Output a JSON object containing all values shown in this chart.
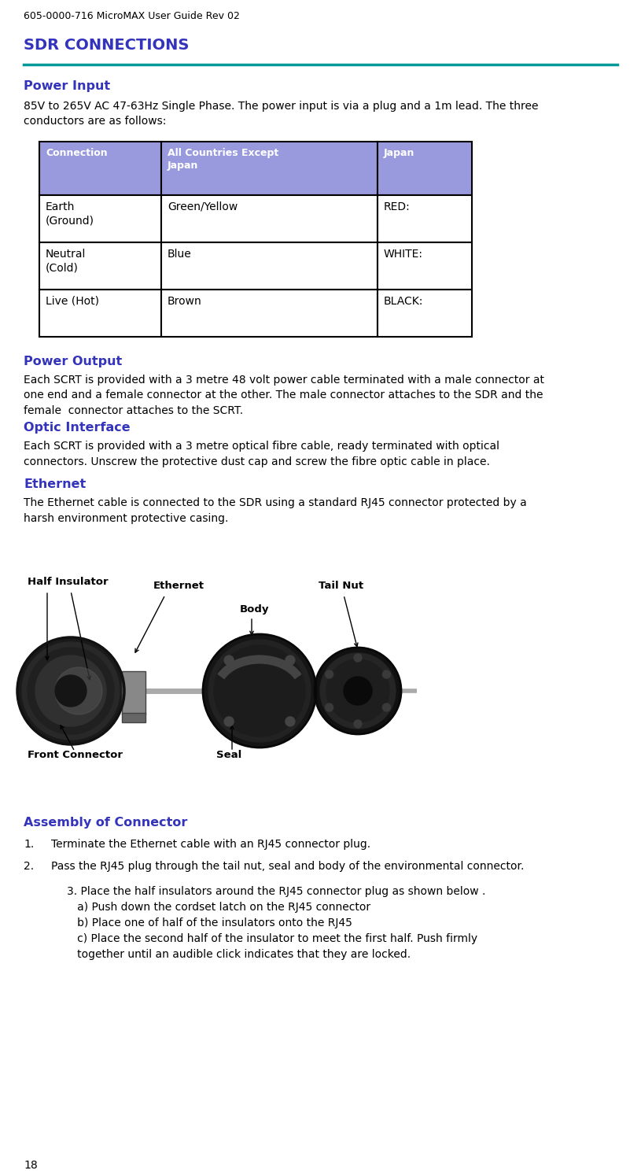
{
  "bg_color": "#ffffff",
  "header_text": "605-0000-716 MicroMAX User Guide Rev 02",
  "header_fontsize": 9,
  "page_number": "18",
  "main_title": "SDR CONNECTIONS",
  "main_title_color": "#3333bb",
  "main_title_fontsize": 14,
  "separator_color": "#009999",
  "section_color": "#3333bb",
  "section_fontsize": 11.5,
  "body_fontsize": 10,
  "power_input_heading": "Power Input",
  "power_input_body": "85V to 265V AC 47-63Hz Single Phase. The power input is via a plug and a 1m lead. The three\nconductors are as follows:",
  "table_header_bg": "#9999dd",
  "table_header_text_color": "#ffffff",
  "table_col1_header": "Connection",
  "table_col2_header": "All Countries Except\nJapan",
  "table_col3_header": "Japan",
  "table_rows": [
    [
      "Earth\n(Ground)",
      "Green/Yellow",
      "RED:"
    ],
    [
      "Neutral\n(Cold)",
      "Blue",
      "WHITE:"
    ],
    [
      "Live (Hot)",
      "Brown",
      "BLACK:"
    ]
  ],
  "power_output_heading": "Power Output",
  "power_output_body": "Each SCRT is provided with a 3 metre 48 volt power cable terminated with a male connector at\none end and a female connector at the other. The male connector attaches to the SDR and the\nfemale  connector attaches to the SCRT.",
  "optic_heading": "Optic Interface",
  "optic_body": "Each SCRT is provided with a 3 metre optical fibre cable, ready terminated with optical\nconnectors. Unscrew the protective dust cap and screw the fibre optic cable in place.",
  "ethernet_heading": "Ethernet",
  "ethernet_body": "The Ethernet cable is connected to the SDR using a standard RJ45 connector protected by a\nharsh environment protective casing.",
  "img_label_half_insulator": "Half Insulator",
  "img_label_ethernet": "Ethernet",
  "img_label_body": "Body",
  "img_label_tail_nut": "Tail Nut",
  "img_label_front_connector": "Front Connector",
  "img_label_seal": "Seal",
  "assembly_heading": "Assembly of Connector",
  "assembly_heading_color": "#3333bb",
  "assembly_item1": "Terminate the Ethernet cable with an RJ45 connector plug.",
  "assembly_item2": "Pass the RJ45 plug through the tail nut, seal and body of the environmental connector.",
  "assembly_item3_line1": "3. Place the half insulators around the RJ45 connector plug as shown below .",
  "assembly_item3_line2": "   a) Push down the cordset latch on the RJ45 connector",
  "assembly_item3_line3": "   b) Place one of half of the insulators onto the RJ45",
  "assembly_item3_line4": "   c) Place the second half of the insulator to meet the first half. Push firmly",
  "assembly_item3_line5": "   together until an audible click indicates that they are locked."
}
